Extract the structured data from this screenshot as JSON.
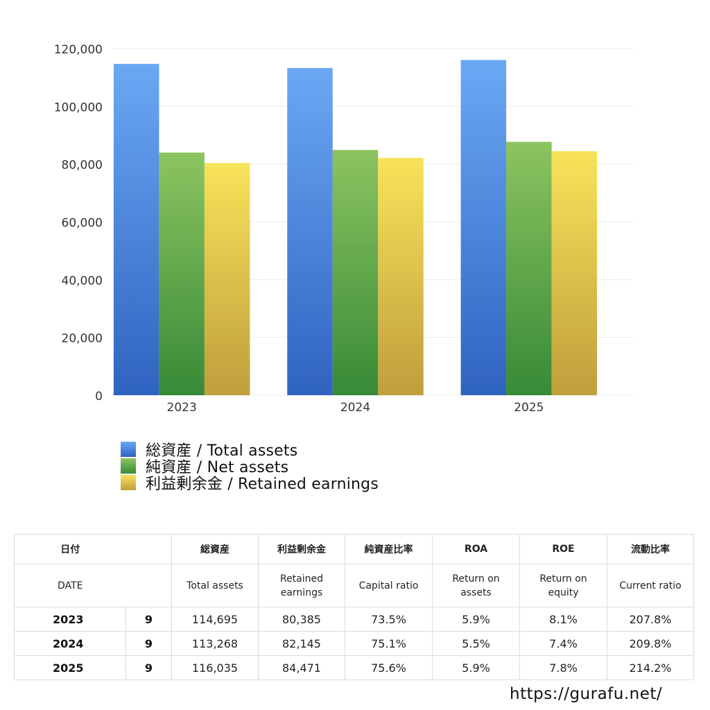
{
  "chart_data": {
    "type": "bar",
    "categories": [
      "2023",
      "2024",
      "2025"
    ],
    "series": [
      {
        "name": "総資産 / Total assets",
        "values": [
          114695,
          113268,
          116035
        ],
        "color_top": "#6aa8f4",
        "color_bottom": "#2f63c0"
      },
      {
        "name": "純資産 / Net assets",
        "values": [
          84000,
          84900,
          87700
        ],
        "color_top": "#8cc460",
        "color_bottom": "#378a37"
      },
      {
        "name": "利益剰余金 / Retained earnings",
        "values": [
          80385,
          82145,
          84471
        ],
        "color_top": "#f8e35a",
        "color_bottom": "#bf9e3c"
      }
    ],
    "ylim": [
      0,
      120000
    ],
    "yticks": [
      0,
      20000,
      40000,
      60000,
      80000,
      100000,
      120000
    ],
    "ytick_labels": [
      "0",
      "20,000",
      "40,000",
      "60,000",
      "80,000",
      "100,000",
      "120,000"
    ],
    "grid": true,
    "legend_position": "bottom-left"
  },
  "table": {
    "header_ja": {
      "date": "日付",
      "total_assets": "総資産",
      "retained": "利益剰余金",
      "capital_ratio": "純資産比率",
      "roa": "ROA",
      "roe": "ROE",
      "current_ratio": "流動比率"
    },
    "header_en": {
      "date": "DATE",
      "total_assets": "Total assets",
      "retained_1": "Retained",
      "retained_2": "earnings",
      "capital_ratio": "Capital ratio",
      "roa_1": "Return on",
      "roa_2": "assets",
      "roe_1": "Return on",
      "roe_2": "equity",
      "current_ratio": "Current ratio"
    },
    "rows": [
      {
        "year": "2023",
        "month": "9",
        "total_assets": "114,695",
        "retained": "80,385",
        "capital_ratio": "73.5%",
        "roa": "5.9%",
        "roe": "8.1%",
        "current_ratio": "207.8%"
      },
      {
        "year": "2024",
        "month": "9",
        "total_assets": "113,268",
        "retained": "82,145",
        "capital_ratio": "75.1%",
        "roa": "5.5%",
        "roe": "7.4%",
        "current_ratio": "209.8%"
      },
      {
        "year": "2025",
        "month": "9",
        "total_assets": "116,035",
        "retained": "84,471",
        "capital_ratio": "75.6%",
        "roa": "5.9%",
        "roe": "7.8%",
        "current_ratio": "214.2%"
      }
    ]
  },
  "footer": {
    "site": "https://gurafu.net/"
  }
}
